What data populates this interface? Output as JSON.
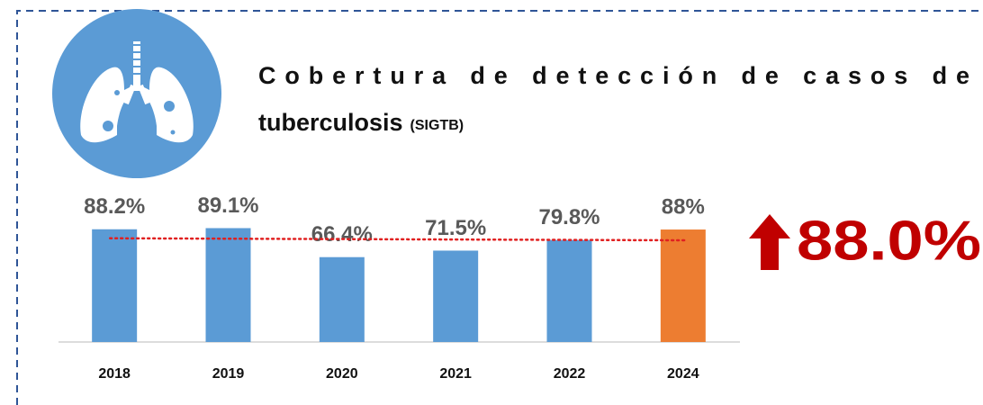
{
  "chart_data": {
    "type": "bar",
    "title": "Cobertura de detección de casos de tuberculosis",
    "title_source": "(SIGTB)",
    "categories": [
      "2018",
      "2019",
      "2020",
      "2021",
      "2022",
      "2024"
    ],
    "values": [
      88.2,
      89.1,
      66.4,
      71.5,
      79.8,
      88
    ],
    "value_labels": [
      "88.2%",
      "89.1%",
      "66.4%",
      "71.5%",
      "79.8%",
      "88%"
    ],
    "colors": [
      "#5b9bd5",
      "#5b9bd5",
      "#5b9bd5",
      "#5b9bd5",
      "#5b9bd5",
      "#ed7d31"
    ],
    "trendline_color": "#e02020",
    "ylim": [
      0,
      100
    ],
    "highlight": "88.0%",
    "highlight_color": "#c00000"
  }
}
